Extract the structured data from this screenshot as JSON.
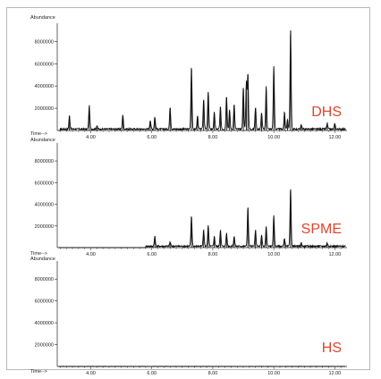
{
  "chart_data": [
    {
      "type": "line",
      "ylabel": "Abundance",
      "xlabel": "Time-->",
      "label": "DHS",
      "ylim": [
        0,
        9000000
      ],
      "xlim": [
        2.9,
        12.4
      ],
      "yticks": [
        "8000000",
        "6000000",
        "4000000",
        "2000000"
      ],
      "xticks": [
        "4.00",
        "6.00",
        "8.00",
        "10.00",
        "12.00"
      ],
      "peaks": [
        {
          "t": 3.3,
          "h": 1200000
        },
        {
          "t": 3.95,
          "h": 2100000
        },
        {
          "t": 4.2,
          "h": 300000
        },
        {
          "t": 5.05,
          "h": 1300000
        },
        {
          "t": 5.95,
          "h": 800000
        },
        {
          "t": 6.1,
          "h": 1100000
        },
        {
          "t": 6.6,
          "h": 2000000
        },
        {
          "t": 7.3,
          "h": 5600000
        },
        {
          "t": 7.5,
          "h": 1200000
        },
        {
          "t": 7.7,
          "h": 2700000
        },
        {
          "t": 7.85,
          "h": 3400000
        },
        {
          "t": 8.05,
          "h": 1500000
        },
        {
          "t": 8.25,
          "h": 2000000
        },
        {
          "t": 8.45,
          "h": 3000000
        },
        {
          "t": 8.55,
          "h": 1700000
        },
        {
          "t": 8.7,
          "h": 2200000
        },
        {
          "t": 9.0,
          "h": 3800000
        },
        {
          "t": 9.1,
          "h": 4300000
        },
        {
          "t": 9.15,
          "h": 5000000
        },
        {
          "t": 9.4,
          "h": 2000000
        },
        {
          "t": 9.6,
          "h": 1500000
        },
        {
          "t": 9.75,
          "h": 3800000
        },
        {
          "t": 10.0,
          "h": 5600000
        },
        {
          "t": 10.35,
          "h": 1500000
        },
        {
          "t": 10.45,
          "h": 900000
        },
        {
          "t": 10.55,
          "h": 9000000
        },
        {
          "t": 10.9,
          "h": 400000
        },
        {
          "t": 11.75,
          "h": 500000
        },
        {
          "t": 12.0,
          "h": 500000
        }
      ]
    },
    {
      "type": "line",
      "ylabel": "Abundance",
      "xlabel": "Time-->",
      "label": "SPME",
      "ylim": [
        0,
        9000000
      ],
      "xlim": [
        2.9,
        12.4
      ],
      "yticks": [
        "8000000",
        "6000000",
        "4000000",
        "2000000"
      ],
      "xticks": [
        "4.00",
        "6.00",
        "8.00",
        "10.00",
        "12.00"
      ],
      "peaks": [
        {
          "t": 6.1,
          "h": 900000
        },
        {
          "t": 6.6,
          "h": 400000
        },
        {
          "t": 7.3,
          "h": 2800000
        },
        {
          "t": 7.7,
          "h": 1500000
        },
        {
          "t": 7.85,
          "h": 1900000
        },
        {
          "t": 8.05,
          "h": 900000
        },
        {
          "t": 8.25,
          "h": 1500000
        },
        {
          "t": 8.45,
          "h": 1200000
        },
        {
          "t": 8.7,
          "h": 900000
        },
        {
          "t": 9.15,
          "h": 3600000
        },
        {
          "t": 9.4,
          "h": 1500000
        },
        {
          "t": 9.6,
          "h": 1000000
        },
        {
          "t": 9.75,
          "h": 1800000
        },
        {
          "t": 10.0,
          "h": 2800000
        },
        {
          "t": 10.35,
          "h": 700000
        },
        {
          "t": 10.55,
          "h": 5300000
        },
        {
          "t": 10.9,
          "h": 300000
        },
        {
          "t": 11.75,
          "h": 300000
        }
      ]
    },
    {
      "type": "line",
      "ylabel": "Abundance",
      "xlabel": "Time-->",
      "label": "HS",
      "ylim": [
        0,
        9000000
      ],
      "xlim": [
        2.9,
        12.4
      ],
      "yticks": [
        "8000000",
        "6000000",
        "4000000",
        "2000000"
      ],
      "xticks": [
        "4.00",
        "6.00",
        "8.00",
        "10.00",
        "12.00"
      ],
      "peaks": []
    }
  ],
  "colors": {
    "trace": "#111111",
    "panel_label": "#e2442c",
    "axis": "#222222"
  }
}
